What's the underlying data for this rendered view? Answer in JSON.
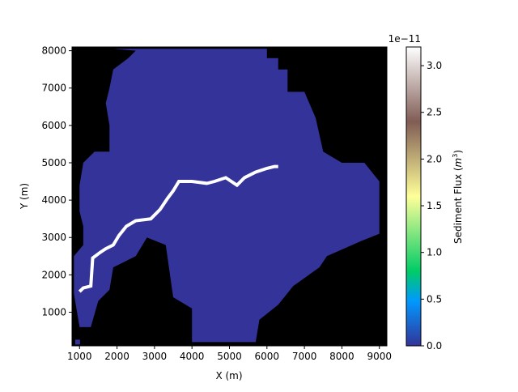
{
  "chart_data": {
    "type": "heatmap",
    "title": "",
    "xlabel": "X (m)",
    "ylabel": "Y (m)",
    "xlim": [
      800,
      9200
    ],
    "ylim": [
      100,
      8100
    ],
    "x_ticks": [
      1000,
      2000,
      3000,
      4000,
      5000,
      6000,
      7000,
      8000,
      9000
    ],
    "x_tick_labels": [
      "1000",
      "2000",
      "3000",
      "4000",
      "5000",
      "6000",
      "7000",
      "8000",
      "9000"
    ],
    "y_ticks": [
      1000,
      2000,
      3000,
      4000,
      5000,
      6000,
      7000,
      8000
    ],
    "y_tick_labels": [
      "1000",
      "2000",
      "3000",
      "4000",
      "5000",
      "6000",
      "7000",
      "8000"
    ],
    "grid": false,
    "colormap": "terrain",
    "colorbar": {
      "label": "Sediment Flux (m^3)",
      "scale_text": "1e−11",
      "range": [
        0.0,
        3.2
      ],
      "ticks": [
        0.0,
        0.5,
        1.0,
        1.5,
        2.0,
        2.5,
        3.0
      ],
      "tick_labels": [
        "0.0",
        "0.5",
        "1.0",
        "1.5",
        "2.0",
        "2.5",
        "3.0"
      ]
    },
    "background_color": "#000000",
    "watershed_fill_value": 0.0,
    "watershed_color": "#333399",
    "watershed_outline": [
      [
        1900,
        8050
      ],
      [
        6000,
        8050
      ],
      [
        6000,
        7800
      ],
      [
        6300,
        7800
      ],
      [
        6300,
        7500
      ],
      [
        6550,
        7500
      ],
      [
        6550,
        6900
      ],
      [
        7000,
        6900
      ],
      [
        7300,
        6200
      ],
      [
        7500,
        5300
      ],
      [
        8000,
        5000
      ],
      [
        8600,
        5000
      ],
      [
        9000,
        4500
      ],
      [
        9000,
        3100
      ],
      [
        8500,
        2900
      ],
      [
        7600,
        2500
      ],
      [
        7400,
        2200
      ],
      [
        6700,
        1700
      ],
      [
        6300,
        1200
      ],
      [
        5800,
        800
      ],
      [
        5700,
        200
      ],
      [
        4000,
        200
      ],
      [
        4000,
        1100
      ],
      [
        3500,
        1400
      ],
      [
        3300,
        2800
      ],
      [
        2800,
        3000
      ],
      [
        2500,
        2500
      ],
      [
        1900,
        2200
      ],
      [
        1800,
        1600
      ],
      [
        1500,
        1300
      ],
      [
        1300,
        600
      ],
      [
        1000,
        600
      ],
      [
        850,
        1500
      ],
      [
        850,
        2500
      ],
      [
        1100,
        2800
      ],
      [
        1100,
        3300
      ],
      [
        1000,
        3700
      ],
      [
        1000,
        4400
      ],
      [
        1100,
        5000
      ],
      [
        1400,
        5300
      ],
      [
        1800,
        5300
      ],
      [
        1800,
        6000
      ],
      [
        1700,
        6600
      ],
      [
        1800,
        7000
      ],
      [
        1900,
        7500
      ],
      [
        2300,
        7800
      ],
      [
        2500,
        8000
      ]
    ],
    "outlier_cell": [
      950,
      200
    ],
    "channel_value": 3.2,
    "channel_color": "#ffffff",
    "channel_path": [
      [
        1000,
        1550
      ],
      [
        1100,
        1650
      ],
      [
        1300,
        1700
      ],
      [
        1350,
        2450
      ],
      [
        1550,
        2600
      ],
      [
        1700,
        2700
      ],
      [
        1900,
        2800
      ],
      [
        2050,
        3050
      ],
      [
        2250,
        3300
      ],
      [
        2500,
        3450
      ],
      [
        2900,
        3500
      ],
      [
        3150,
        3750
      ],
      [
        3350,
        4050
      ],
      [
        3500,
        4250
      ],
      [
        3650,
        4500
      ],
      [
        4000,
        4500
      ],
      [
        4400,
        4450
      ],
      [
        4600,
        4500
      ],
      [
        4900,
        4600
      ],
      [
        5200,
        4400
      ],
      [
        5400,
        4600
      ],
      [
        5700,
        4750
      ],
      [
        6000,
        4850
      ],
      [
        6200,
        4900
      ],
      [
        6300,
        4900
      ]
    ]
  }
}
